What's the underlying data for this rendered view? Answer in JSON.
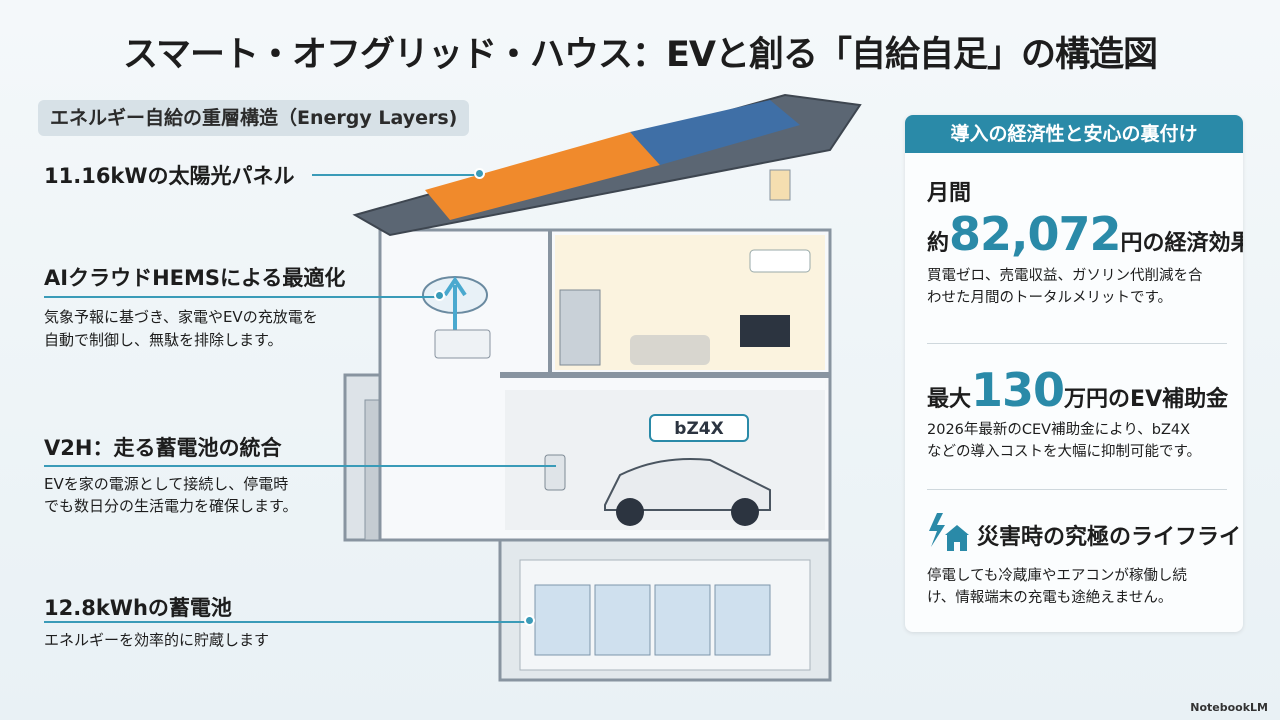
{
  "title": "スマート・オフグリッド・ハウス：EVと創る「自給自足」の構造図",
  "layers": {
    "badge": "エネルギー自給の重層構造（Energy Layers)",
    "solar": {
      "heading": "11.16kWの太陽光パネル"
    },
    "hems": {
      "heading": "AIクラウドHEMSによる最適化",
      "desc": [
        "気象予報に基づき、家電やEVの充放電を",
        "自動で制御し、無駄を排除します。"
      ]
    },
    "v2h": {
      "heading": "V2H：走る蓄電池の統合",
      "desc": [
        "EVを家の電源として接続し、停電時",
        "でも数日分の生活電力を確保します。"
      ]
    },
    "battery": {
      "heading": "12.8kWhの蓄電池",
      "desc": [
        "エネルギーを効率的に貯蔵します"
      ]
    }
  },
  "illustration": {
    "car_badge": "bZ4X"
  },
  "panel": {
    "header": "導入の経済性と安心の裏付け",
    "savings": {
      "line1": "月間",
      "prefix": "約",
      "value": "82,072",
      "suffix": "円の経済効果",
      "desc": [
        "買電ゼロ、売電収益、ガソリン代削減を合",
        "わせた月間のトータルメリットです。"
      ]
    },
    "subsidy": {
      "prefix": "最大",
      "value": "130",
      "suffix": "万円のEV補助金",
      "desc": [
        "2026年最新のCEV補助金により、bZ4X",
        "などの導入コストを大幅に抑制可能です。"
      ]
    },
    "disaster": {
      "icon": "lightning-house-plug-icon",
      "heading": "災害時の究極のライフライン",
      "desc": [
        "停電しても冷蔵庫やエアコンが稼働し続",
        "け、情報端末の充電も途絶えません。"
      ]
    }
  },
  "brand": "NotebookLM",
  "colors": {
    "accent": "#2a8aa8",
    "solar": "#f08a2c"
  }
}
